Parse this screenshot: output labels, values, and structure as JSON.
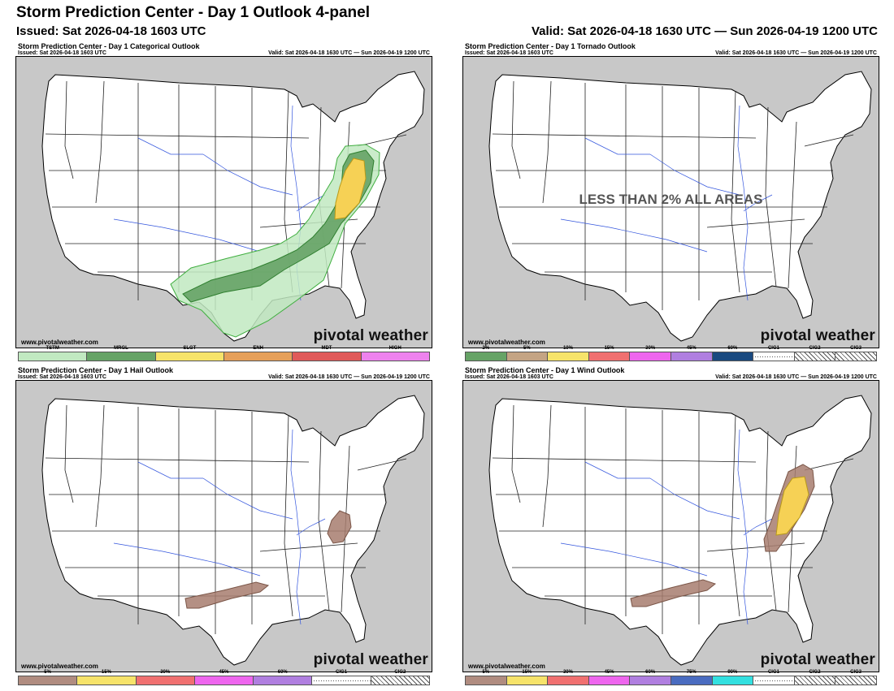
{
  "header": {
    "title": "Storm Prediction Center - Day 1 Outlook 4-panel",
    "issued": "Issued: Sat 2026-04-18 1603 UTC",
    "valid": "Valid: Sat 2026-04-18 1630 UTC — Sun 2026-04-19 1200 UTC"
  },
  "watermark": {
    "site": "www.pivotalweather.com",
    "brand": "pivotal weather"
  },
  "colors": {
    "ocean": "#c8c8c8",
    "land": "#ffffff",
    "rivers": "#3355dd",
    "tstm": "#c1e9c1",
    "mrgl": "#66a366",
    "slgt": "#f6f67f",
    "hail_wind_5": "#c49b8a"
  },
  "panels": {
    "categorical": {
      "title": "Storm Prediction Center - Day 1 Categorical Outlook",
      "issued": "Issued: Sat 2026-04-18 1603 UTC",
      "valid": "Valid: Sat 2026-04-18 1630 UTC — Sun 2026-04-19 1200 UTC",
      "highest_risk": "SLGT",
      "legend": [
        {
          "label": "TSTM",
          "color": "#c1e9c1"
        },
        {
          "label": "MRGL",
          "color": "#66a366"
        },
        {
          "label": "SLGT",
          "color": "#f6e36a"
        },
        {
          "label": "ENH",
          "color": "#e6a05a"
        },
        {
          "label": "MDT",
          "color": "#e05a5a"
        },
        {
          "label": "HIGH",
          "color": "#ee82ee"
        }
      ]
    },
    "tornado": {
      "title": "Storm Prediction Center - Day 1 Tornado Outlook",
      "issued": "Issued: Sat 2026-04-18 1603 UTC",
      "valid": "Valid: Sat 2026-04-18 1630 UTC — Sun 2026-04-19 1200 UTC",
      "no_risk_text": "LESS THAN 2% ALL AREAS",
      "legend": [
        {
          "label": "2%",
          "color": "#66a366"
        },
        {
          "label": "5%",
          "color": "#c4a484"
        },
        {
          "label": "10%",
          "color": "#f6e36a"
        },
        {
          "label": "15%",
          "color": "#f07070"
        },
        {
          "label": "30%",
          "color": "#ee66ee"
        },
        {
          "label": "45%",
          "color": "#b07fe0"
        },
        {
          "label": "60%",
          "color": "#1a4a80"
        },
        {
          "label": "CIG1",
          "color": "hatch1"
        },
        {
          "label": "CIG2",
          "color": "hatch2"
        },
        {
          "label": "CIG3",
          "color": "hatch3"
        }
      ]
    },
    "hail": {
      "title": "Storm Prediction Center - Day 1 Hail Outlook",
      "issued": "Issued: Sat 2026-04-18 1603 UTC",
      "valid": "Valid: Sat 2026-04-18 1630 UTC — Sun 2026-04-19 1200 UTC",
      "legend": [
        {
          "label": "5%",
          "color": "#b08c80"
        },
        {
          "label": "15%",
          "color": "#f6e36a"
        },
        {
          "label": "30%",
          "color": "#f07070"
        },
        {
          "label": "45%",
          "color": "#ee66ee"
        },
        {
          "label": "60%",
          "color": "#b07fe0"
        },
        {
          "label": "CIG1",
          "color": "hatch1"
        },
        {
          "label": "CIG2",
          "color": "hatch2"
        }
      ]
    },
    "wind": {
      "title": "Storm Prediction Center - Day 1 Wind Outlook",
      "issued": "Issued: Sat 2026-04-18 1603 UTC",
      "valid": "Valid: Sat 2026-04-18 1630 UTC — Sun 2026-04-19 1200 UTC",
      "legend": [
        {
          "label": "5%",
          "color": "#b08c80"
        },
        {
          "label": "15%",
          "color": "#f6e36a"
        },
        {
          "label": "30%",
          "color": "#f07070"
        },
        {
          "label": "45%",
          "color": "#ee66ee"
        },
        {
          "label": "60%",
          "color": "#b07fe0"
        },
        {
          "label": "75%",
          "color": "#4a6cc0"
        },
        {
          "label": "90%",
          "color": "#33e0e0"
        },
        {
          "label": "CIG1",
          "color": "hatch1"
        },
        {
          "label": "CIG2",
          "color": "hatch2"
        },
        {
          "label": "CIG3",
          "color": "hatch3"
        }
      ]
    }
  }
}
